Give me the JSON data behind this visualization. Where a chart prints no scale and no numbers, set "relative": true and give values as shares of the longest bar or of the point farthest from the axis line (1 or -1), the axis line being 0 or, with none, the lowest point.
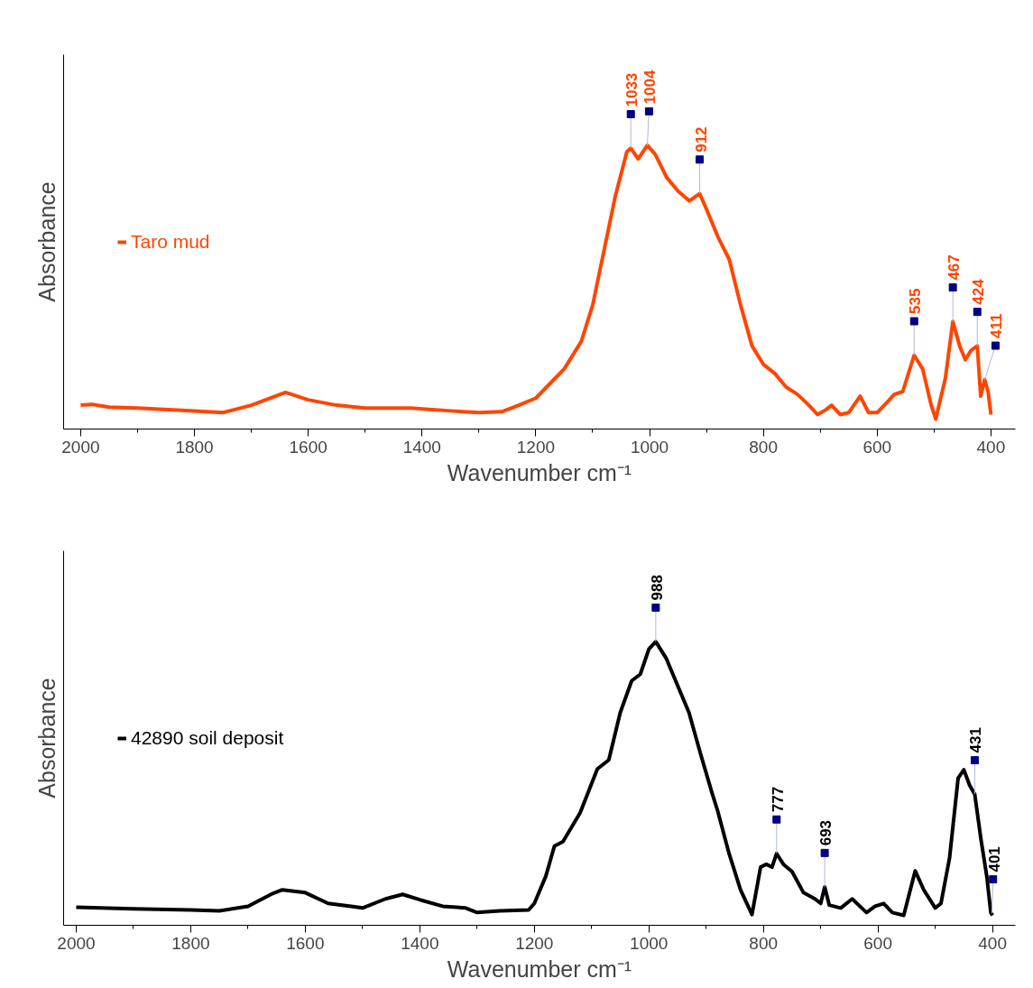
{
  "chart_data": [
    {
      "type": "line",
      "relative": true,
      "xlabel": "Wavenumber cm⁻¹",
      "ylabel": "Absorbance",
      "xlim": [
        2030,
        357
      ],
      "xticks": [
        2000,
        1800,
        1600,
        1400,
        1200,
        1000,
        800,
        600,
        400
      ],
      "tick_labels": "x",
      "legend": "left",
      "grid": false,
      "x": [
        2000,
        1980,
        1950,
        1900,
        1800,
        1750,
        1700,
        1640,
        1600,
        1550,
        1500,
        1420,
        1350,
        1300,
        1260,
        1230,
        1200,
        1150,
        1120,
        1100,
        1080,
        1060,
        1040,
        1033,
        1020,
        1004,
        990,
        970,
        950,
        930,
        912,
        900,
        880,
        860,
        840,
        820,
        800,
        780,
        760,
        740,
        720,
        705,
        690,
        680,
        665,
        650,
        630,
        615,
        600,
        580,
        570,
        555,
        535,
        520,
        505,
        497,
        480,
        467,
        455,
        445,
        435,
        424,
        418,
        411,
        405,
        400
      ],
      "series": [
        {
          "name": "Taro mud",
          "color": "#ff4500",
          "values": [
            0.084,
            0.087,
            0.077,
            0.074,
            0.064,
            0.058,
            0.084,
            0.129,
            0.103,
            0.084,
            0.074,
            0.074,
            0.064,
            0.058,
            0.061,
            0.084,
            0.109,
            0.212,
            0.309,
            0.437,
            0.63,
            0.823,
            0.977,
            0.99,
            0.952,
            1.0,
            0.968,
            0.887,
            0.839,
            0.804,
            0.83,
            0.775,
            0.678,
            0.598,
            0.437,
            0.293,
            0.228,
            0.196,
            0.148,
            0.122,
            0.084,
            0.051,
            0.068,
            0.084,
            0.051,
            0.058,
            0.116,
            0.058,
            0.058,
            0.1,
            0.122,
            0.132,
            0.26,
            0.212,
            0.084,
            0.035,
            0.18,
            0.379,
            0.293,
            0.244,
            0.277,
            0.293,
            0.116,
            0.174,
            0.132,
            0.051
          ]
        }
      ],
      "annotations": [
        {
          "text": "1033",
          "x": 1033,
          "y": 0.99
        },
        {
          "text": "1004",
          "x": 1004,
          "y": 1.0
        },
        {
          "text": "912",
          "x": 912,
          "y": 0.83
        },
        {
          "text": "535",
          "x": 535,
          "y": 0.26
        },
        {
          "text": "467",
          "x": 467,
          "y": 0.379
        },
        {
          "text": "424",
          "x": 424,
          "y": 0.293
        },
        {
          "text": "411",
          "x": 411,
          "y": 0.174
        }
      ]
    },
    {
      "type": "line",
      "relative": true,
      "xlabel": "Wavenumber cm⁻¹",
      "ylabel": "Absorbance",
      "xlim": [
        2022,
        360
      ],
      "xticks": [
        2000,
        1800,
        1600,
        1400,
        1200,
        1000,
        800,
        600,
        400
      ],
      "tick_labels": "x",
      "legend": "left",
      "grid": false,
      "x": [
        2000,
        1900,
        1800,
        1750,
        1700,
        1660,
        1640,
        1600,
        1560,
        1520,
        1500,
        1460,
        1430,
        1400,
        1360,
        1320,
        1300,
        1260,
        1210,
        1200,
        1180,
        1165,
        1150,
        1120,
        1090,
        1070,
        1050,
        1030,
        1015,
        1000,
        988,
        970,
        950,
        930,
        910,
        890,
        880,
        860,
        840,
        820,
        805,
        795,
        785,
        777,
        765,
        750,
        730,
        710,
        700,
        693,
        685,
        665,
        645,
        620,
        605,
        590,
        575,
        555,
        535,
        520,
        500,
        490,
        475,
        460,
        450,
        440,
        431,
        420,
        410,
        403,
        400
      ],
      "series": [
        {
          "name": "42890 soil deposit",
          "color": "#000000",
          "values": [
            0.064,
            0.058,
            0.054,
            0.051,
            0.067,
            0.109,
            0.125,
            0.115,
            0.077,
            0.067,
            0.061,
            0.093,
            0.109,
            0.09,
            0.067,
            0.061,
            0.045,
            0.051,
            0.054,
            0.077,
            0.173,
            0.279,
            0.295,
            0.397,
            0.551,
            0.583,
            0.75,
            0.862,
            0.885,
            0.974,
            1.0,
            0.942,
            0.846,
            0.75,
            0.606,
            0.468,
            0.404,
            0.253,
            0.125,
            0.038,
            0.205,
            0.215,
            0.205,
            0.253,
            0.215,
            0.189,
            0.115,
            0.093,
            0.077,
            0.135,
            0.071,
            0.061,
            0.093,
            0.045,
            0.067,
            0.077,
            0.045,
            0.035,
            0.192,
            0.125,
            0.061,
            0.077,
            0.237,
            0.519,
            0.548,
            0.494,
            0.462,
            0.301,
            0.173,
            0.045,
            0.035
          ]
        }
      ],
      "annotations": [
        {
          "text": "988",
          "x": 988,
          "y": 1.0
        },
        {
          "text": "777",
          "x": 777,
          "y": 0.253
        },
        {
          "text": "693",
          "x": 693,
          "y": 0.135
        },
        {
          "text": "431",
          "x": 431,
          "y": 0.462
        },
        {
          "text": "401",
          "x": 401,
          "y": 0.042
        }
      ]
    }
  ]
}
